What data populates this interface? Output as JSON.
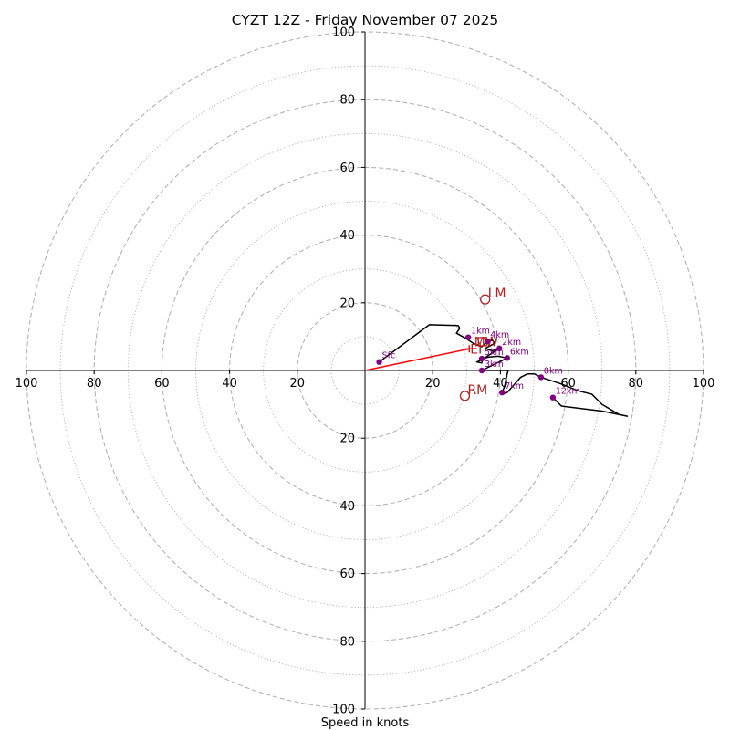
{
  "chart_data": {
    "type": "hodograph",
    "title": "CYZT 12Z - Friday November 07 2025",
    "xlabel": "Speed in knots",
    "max_speed": 100,
    "ring_dashed": [
      20,
      40,
      60,
      80,
      100
    ],
    "ring_dotted": [
      10,
      30,
      50,
      70,
      90
    ],
    "x_ticks": [
      -100,
      -80,
      -60,
      -40,
      -20,
      20,
      40,
      60,
      80,
      100
    ],
    "y_ticks": [
      -100,
      -80,
      -60,
      -40,
      -20,
      20,
      40,
      60,
      80,
      100
    ],
    "x_tick_labels": [
      "100",
      "80",
      "60",
      "40",
      "20",
      "20",
      "40",
      "60",
      "80",
      "100"
    ],
    "y_tick_labels": [
      "100",
      "80",
      "60",
      "40",
      "20",
      "20",
      "40",
      "60",
      "80",
      "100"
    ],
    "wind_profile": [
      [
        4.2,
        2.5
      ],
      [
        19,
        13.5
      ],
      [
        27.5,
        13.3
      ],
      [
        28,
        12.5
      ],
      [
        27,
        11
      ],
      [
        29.6,
        9.6
      ],
      [
        32,
        8
      ],
      [
        34.5,
        7
      ],
      [
        36.2,
        8.6
      ],
      [
        37.6,
        9
      ],
      [
        38.3,
        8
      ],
      [
        35.5,
        6.5
      ],
      [
        37.5,
        5.8
      ],
      [
        39.7,
        6.5
      ],
      [
        34.2,
        3
      ],
      [
        33,
        2.5
      ],
      [
        34.5,
        2.2
      ],
      [
        34.7,
        3.5
      ],
      [
        36.7,
        4
      ],
      [
        39.3,
        4.2
      ],
      [
        42,
        3.7
      ],
      [
        34.5,
        0
      ],
      [
        40.5,
        0
      ],
      [
        42.3,
        0
      ],
      [
        42,
        -1
      ],
      [
        41.3,
        -4.5
      ],
      [
        40.5,
        -6.5
      ],
      [
        40.5,
        -7
      ],
      [
        42,
        -6.5
      ],
      [
        46,
        -2
      ],
      [
        48,
        -1
      ],
      [
        50,
        -1
      ],
      [
        52,
        -2
      ],
      [
        58,
        -4
      ],
      [
        63,
        -6
      ],
      [
        67,
        -7
      ],
      [
        70,
        -10
      ],
      [
        75,
        -13
      ],
      [
        77.5,
        -13.5
      ],
      [
        70,
        -12
      ],
      [
        58,
        -10.5
      ],
      [
        55.5,
        -8
      ]
    ],
    "height_markers": [
      {
        "label": "Sfc",
        "u": 4.2,
        "v": 2.5
      },
      {
        "label": "1km",
        "u": 30.5,
        "v": 9.8
      },
      {
        "label": "2km",
        "u": 39.7,
        "v": 6.5
      },
      {
        "label": "3km",
        "u": 34.5,
        "v": 0
      },
      {
        "label": "4km",
        "u": 36.2,
        "v": 8.6
      },
      {
        "label": "5km",
        "u": 34.5,
        "v": 3.5
      },
      {
        "label": "6km",
        "u": 42,
        "v": 3.7
      },
      {
        "label": "7km",
        "u": 40.5,
        "v": -6.5
      },
      {
        "label": "8km",
        "u": 52,
        "v": -2
      },
      {
        "label": "12km",
        "u": 55.5,
        "v": -8
      }
    ],
    "storm_motion": [
      {
        "label": "LM",
        "u": 35.5,
        "v": 21
      },
      {
        "label": "RM",
        "u": 29.5,
        "v": -7.5
      }
    ],
    "mean_wind": {
      "label": "MW",
      "u": 34.7,
      "v": 8.5
    },
    "effective_inflow": {
      "label": "EI",
      "u": 30.8,
      "v": 6.4
    },
    "colors": {
      "profile": "#000000",
      "markers": "#800080",
      "storm_motion": "#b22222",
      "inflow_vector": "#ff0000",
      "grid": "#b3b3b3"
    }
  }
}
